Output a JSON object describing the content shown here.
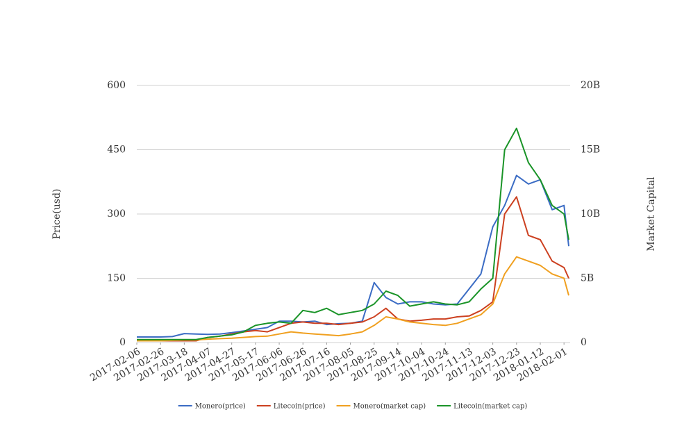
{
  "chart_data": {
    "type": "line",
    "x": [
      "2017-02-06",
      "2017-02-16",
      "2017-02-26",
      "2017-03-08",
      "2017-03-18",
      "2017-03-28",
      "2017-04-07",
      "2017-04-17",
      "2017-04-27",
      "2017-05-07",
      "2017-05-17",
      "2017-05-27",
      "2017-06-06",
      "2017-06-16",
      "2017-06-26",
      "2017-07-06",
      "2017-07-16",
      "2017-07-26",
      "2017-08-05",
      "2017-08-15",
      "2017-08-25",
      "2017-09-04",
      "2017-09-14",
      "2017-09-24",
      "2017-10-04",
      "2017-10-14",
      "2017-10-24",
      "2017-11-03",
      "2017-11-13",
      "2017-11-23",
      "2017-12-03",
      "2017-12-13",
      "2017-12-23",
      "2018-01-02",
      "2018-01-12",
      "2018-01-22",
      "2018-02-01",
      "2018-02-05"
    ],
    "xlim": [
      "2017-02-06",
      "2018-02-05"
    ],
    "xticks": [
      "2017-02-06",
      "2017-02-26",
      "2017-03-18",
      "2017-04-07",
      "2017-04-27",
      "2017-05-17",
      "2017-06-06",
      "2017-06-26",
      "2017-07-16",
      "2017-08-05",
      "2017-08-25",
      "2017-09-14",
      "2017-10-04",
      "2017-10-24",
      "2017-11-13",
      "2017-12-03",
      "2017-12-23",
      "2018-01-12",
      "2018-02-01"
    ],
    "y_label": "Price(usd)",
    "y2_label": "Market Capital",
    "ylim": [
      0,
      600
    ],
    "yticks": [
      0,
      150,
      300,
      450,
      600
    ],
    "y2lim": [
      0,
      20000000000
    ],
    "y2ticks": [
      0,
      {
        "value": 5000000000,
        "label": "5B"
      },
      {
        "value": 10000000000,
        "label": "10B"
      },
      {
        "value": 15000000000,
        "label": "15B"
      },
      {
        "value": 20000000000,
        "label": "20B"
      }
    ],
    "grid": true,
    "series": [
      {
        "name": "Monero(price)",
        "color": "#3b6cc4",
        "values": [
          13,
          13,
          13,
          14,
          21,
          20,
          19,
          20,
          23,
          27,
          31,
          35,
          50,
          50,
          48,
          50,
          42,
          44,
          45,
          50,
          140,
          105,
          90,
          95,
          95,
          90,
          88,
          90,
          125,
          160,
          270,
          320,
          390,
          370,
          380,
          310,
          320,
          225
        ]
      },
      {
        "name": "Litecoin(price)",
        "color": "#cc4020",
        "values": [
          4,
          4,
          4,
          4,
          4,
          4,
          12,
          15,
          20,
          25,
          28,
          25,
          35,
          45,
          48,
          45,
          45,
          42,
          45,
          48,
          60,
          80,
          55,
          50,
          52,
          55,
          55,
          60,
          62,
          75,
          95,
          300,
          340,
          250,
          240,
          190,
          175,
          150
        ]
      },
      {
        "name": "Monero(market cap)",
        "color": "#f0a020",
        "axis": "y2",
        "values": [
          133000000,
          133000000,
          133000000,
          167000000,
          200000000,
          200000000,
          267000000,
          300000000,
          333000000,
          400000000,
          467000000,
          500000000,
          667000000,
          833000000,
          733000000,
          667000000,
          600000000,
          533000000,
          667000000,
          833000000,
          1333000000,
          2000000000,
          1833000000,
          1600000000,
          1500000000,
          1400000000,
          1333000000,
          1500000000,
          1833000000,
          2167000000,
          3000000000,
          5333000000,
          6667000000,
          6333000000,
          6000000000,
          5333000000,
          5000000000,
          3667000000
        ]
      },
      {
        "name": "Litecoin(market cap)",
        "color": "#1a9428",
        "axis": "y2",
        "values": [
          233000000,
          233000000,
          233000000,
          233000000,
          233000000,
          233000000,
          400000000,
          500000000,
          600000000,
          833000000,
          1333000000,
          1500000000,
          1600000000,
          1500000000,
          2500000000,
          2333000000,
          2667000000,
          2167000000,
          2333000000,
          2500000000,
          3000000000,
          4000000000,
          3667000000,
          2833000000,
          3000000000,
          3167000000,
          3000000000,
          2933000000,
          3167000000,
          4167000000,
          5000000000,
          15000000000,
          16667000000,
          14000000000,
          12667000000,
          10667000000,
          10000000000,
          8000000000
        ]
      }
    ]
  }
}
